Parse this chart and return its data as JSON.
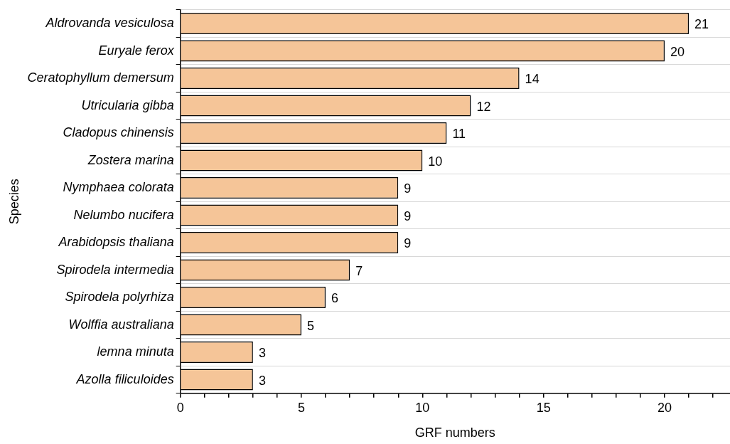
{
  "chart_data": {
    "type": "bar",
    "orientation": "horizontal",
    "xlabel": "GRF numbers",
    "ylabel": "Species",
    "categories": [
      "Aldrovanda vesiculosa",
      "Euryale ferox",
      "Ceratophyllum demersum",
      "Utricularia gibba",
      "Cladopus chinensis",
      "Zostera marina",
      "Nymphaea colorata",
      "Nelumbo nucifera",
      "Arabidopsis thaliana",
      "Spirodela intermedia",
      "Spirodela polyrhiza",
      "Wolffia australiana",
      "lemna minuta",
      "Azolla filiculoides"
    ],
    "values": [
      21,
      20,
      14,
      12,
      11,
      10,
      9,
      9,
      9,
      7,
      6,
      5,
      3,
      3
    ],
    "color": "#f5c598",
    "data_labels": true,
    "grid": "y",
    "legend": false,
    "xlim": [
      0,
      22.7
    ],
    "xticks": [
      0,
      {
        "value": 1,
        "label": null
      },
      {
        "value": 2,
        "label": null
      },
      {
        "value": 3,
        "label": null
      },
      {
        "value": 4,
        "label": null
      },
      5,
      {
        "value": 6,
        "label": null
      },
      {
        "value": 7,
        "label": null
      },
      {
        "value": 8,
        "label": null
      },
      {
        "value": 9,
        "label": null
      },
      10,
      {
        "value": 11,
        "label": null
      },
      {
        "value": 12,
        "label": null
      },
      {
        "value": 13,
        "label": null
      },
      {
        "value": 14,
        "label": null
      },
      15,
      {
        "value": 16,
        "label": null
      },
      {
        "value": 17,
        "label": null
      },
      {
        "value": 18,
        "label": null
      },
      {
        "value": 19,
        "label": null
      },
      20,
      {
        "value": 21,
        "label": null
      },
      {
        "value": 22,
        "label": null
      }
    ]
  }
}
